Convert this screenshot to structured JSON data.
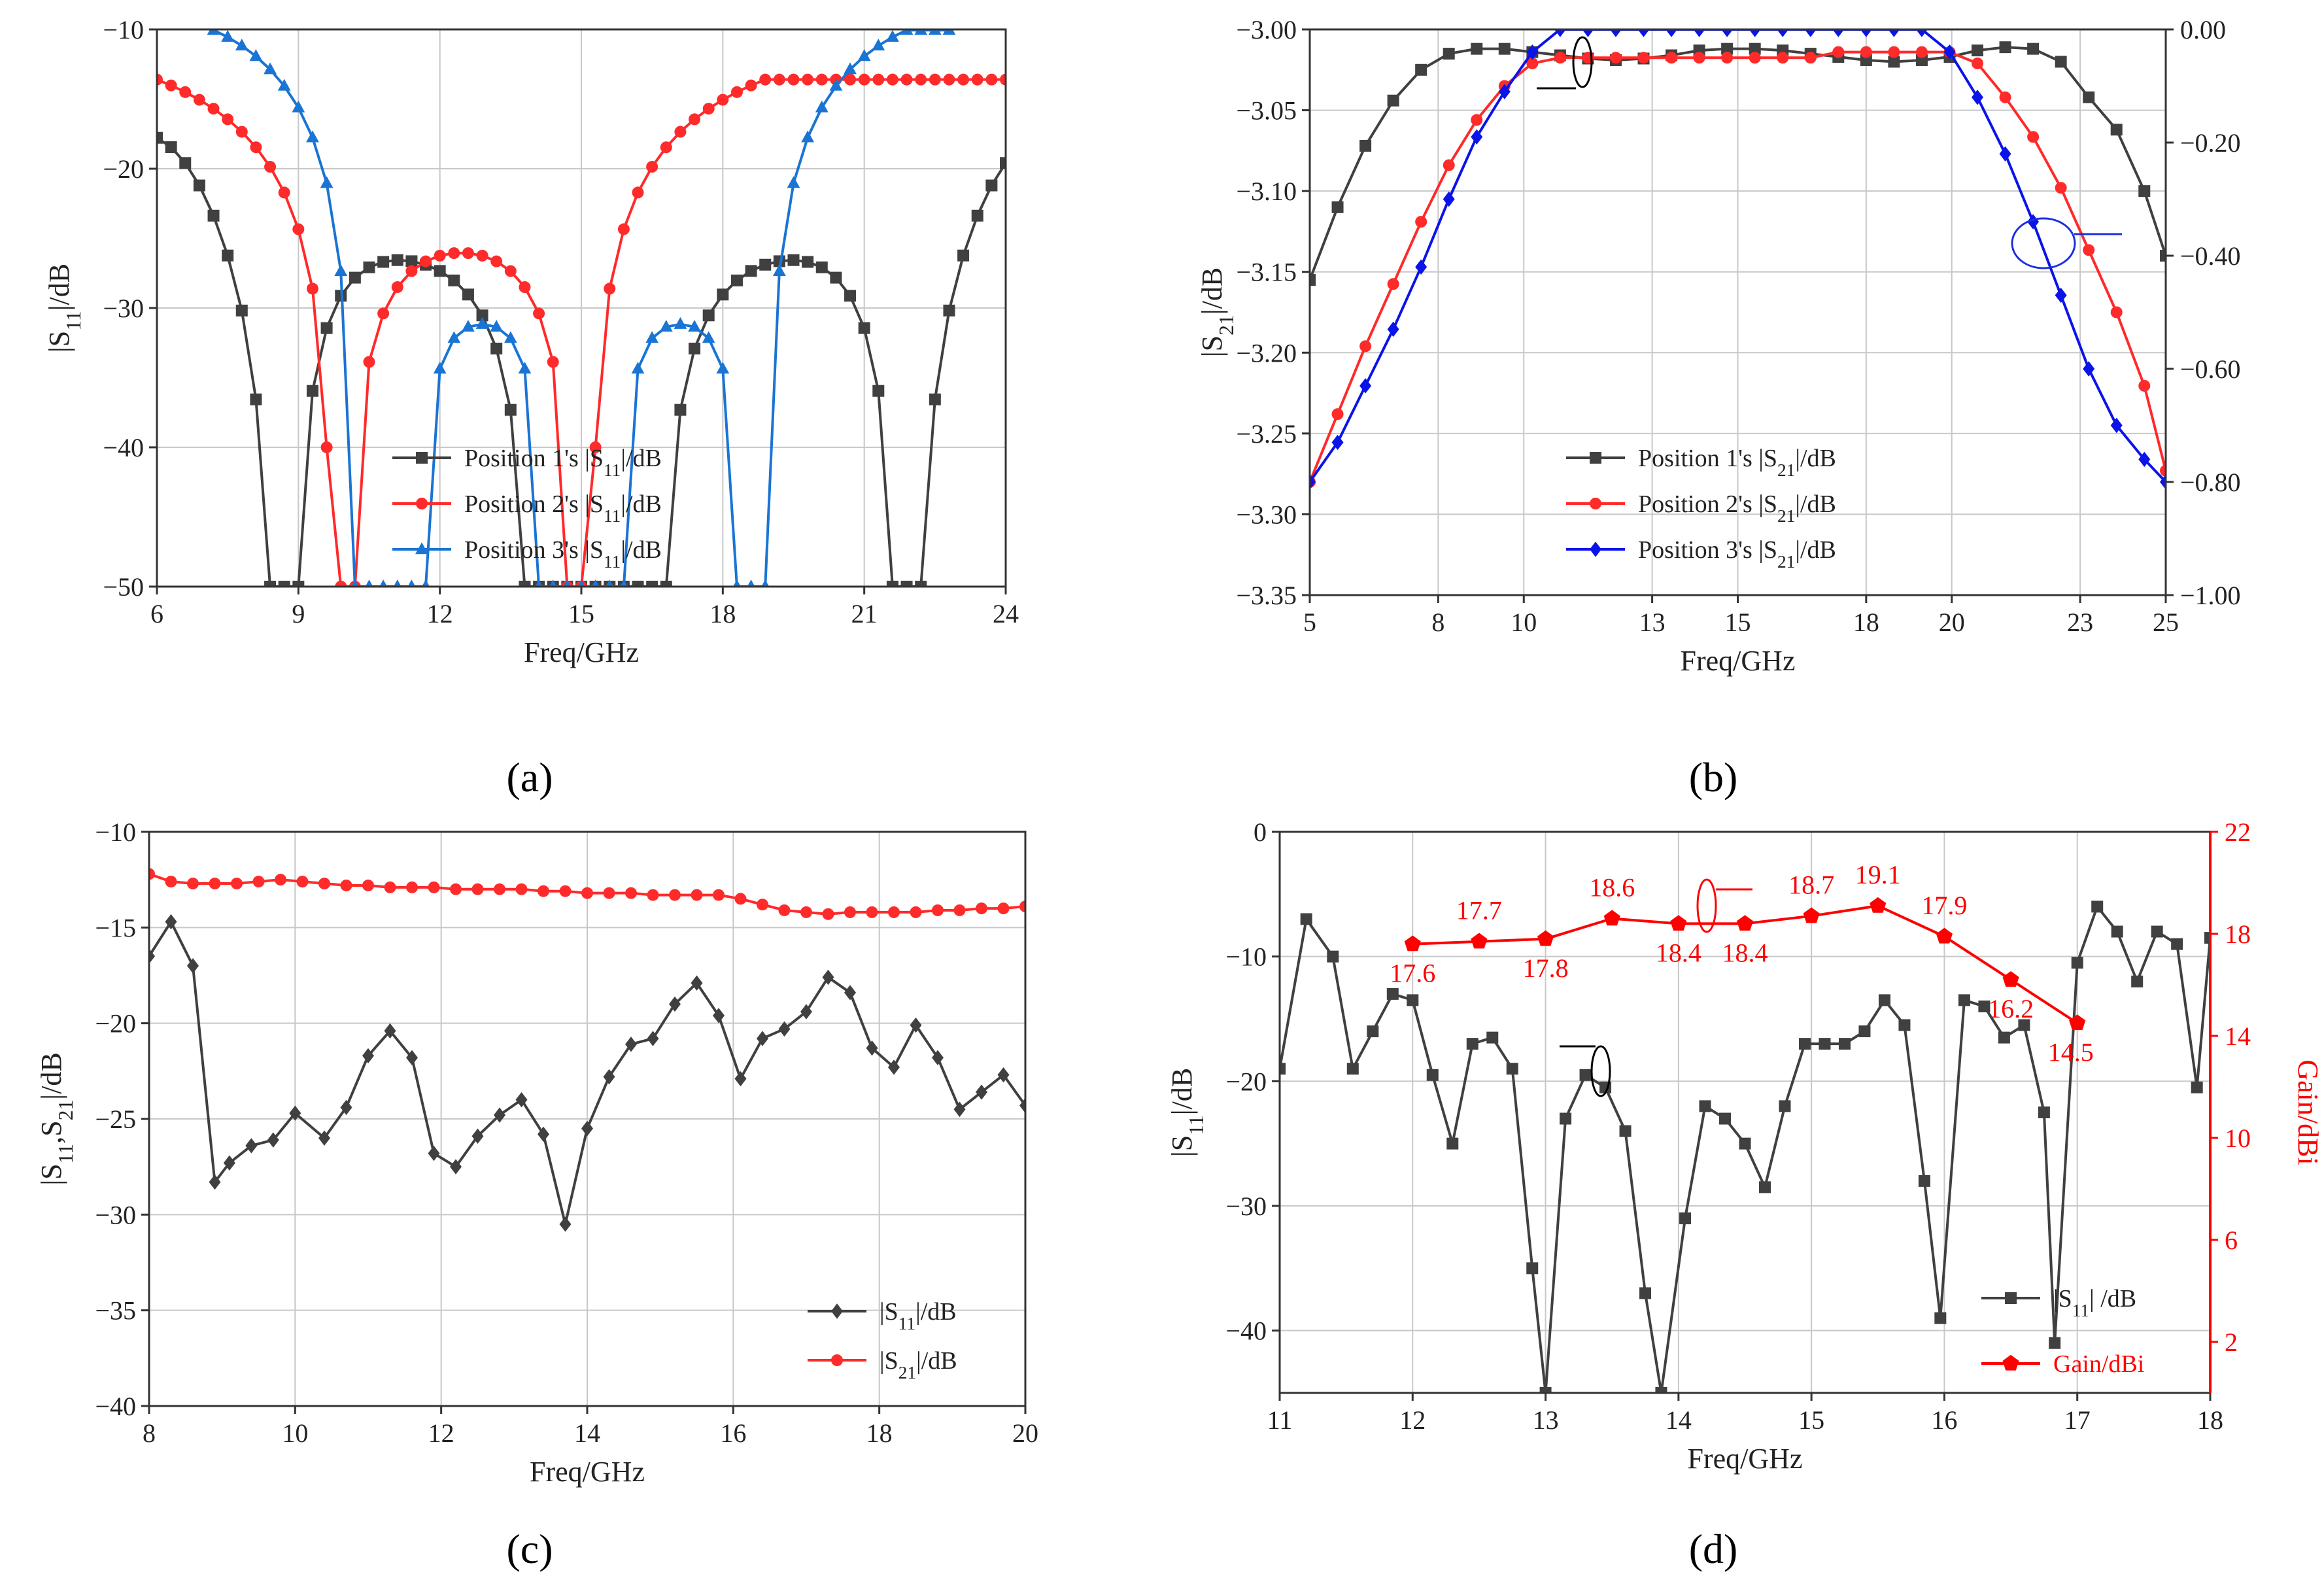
{
  "colors": {
    "black": "#404040",
    "red": "#ff2a2a",
    "blue": "#1a74d4",
    "diamond_blue": "#0a14e8",
    "gain_red": "#ff0000"
  },
  "chart_data": [
    {
      "id": "a",
      "caption": "(a)",
      "type": "line",
      "xlabel": "Freq/GHz",
      "ylabel": "|S11|/dB",
      "xlim": [
        6,
        24
      ],
      "ylim": [
        -50,
        -10
      ],
      "xticks": [
        "6",
        "9",
        "12",
        "15",
        "18",
        "21",
        "24"
      ],
      "yticks": [
        "−50",
        "−40",
        "−30",
        "−20",
        "−10"
      ],
      "grid": true,
      "series": [
        {
          "name": "Position 1's  |S11|/dB",
          "marker": "square",
          "x": [
            6.0,
            6.3,
            6.6,
            6.9,
            7.2,
            7.5,
            7.8,
            8.1,
            8.4,
            8.7,
            9.0,
            9.3,
            9.6,
            9.9,
            10.2,
            10.5,
            10.8,
            11.1,
            11.4,
            11.7,
            12.0,
            12.3,
            12.6,
            12.9,
            13.2,
            13.5,
            13.8,
            14.1,
            14.4,
            14.7,
            15.0,
            15.3,
            15.6,
            15.9,
            16.2,
            16.5,
            16.8,
            17.1,
            17.4,
            17.7,
            18.0,
            18.3,
            18.6,
            18.9,
            19.2,
            19.5,
            19.8,
            20.1,
            20.4,
            20.7,
            21.0,
            21.3,
            21.6,
            21.9,
            22.2,
            22.5,
            22.8,
            23.1,
            23.4,
            23.7,
            24.0
          ],
          "y": [
            -17.78,
            -18.45,
            -19.59,
            -21.2,
            -23.37,
            -26.23,
            -30.18,
            -36.56,
            -50,
            -50,
            -50,
            -35.95,
            -31.44,
            -29.12,
            -27.82,
            -27.08,
            -26.69,
            -26.56,
            -26.64,
            -26.89,
            -27.34,
            -28.02,
            -29.03,
            -30.53,
            -32.91,
            -37.31,
            -50,
            -50,
            -50,
            -50,
            -50,
            -50,
            -50,
            -50,
            -50,
            -50,
            -50,
            -37.31,
            -32.91,
            -30.53,
            -29.03,
            -28.02,
            -27.34,
            -26.89,
            -26.64,
            -26.56,
            -26.69,
            -27.08,
            -27.82,
            -29.12,
            -31.44,
            -35.95,
            -50,
            -50,
            -50,
            -36.56,
            -30.18,
            -26.23,
            -23.37,
            -21.2,
            -19.59
          ]
        },
        {
          "name": "Position 2's  |S11|/dB",
          "marker": "circle",
          "x": [
            6.0,
            6.3,
            6.6,
            6.9,
            7.2,
            7.5,
            7.8,
            8.1,
            8.4,
            8.7,
            9.0,
            9.3,
            9.6,
            9.9,
            10.2,
            10.5,
            10.8,
            11.1,
            11.4,
            11.7,
            12.0,
            12.3,
            12.6,
            12.9,
            13.2,
            13.5,
            13.8,
            14.1,
            14.4,
            14.7,
            15.0,
            15.3,
            15.6,
            15.9,
            16.2,
            16.5,
            16.8,
            17.1,
            17.4,
            17.7,
            18.0,
            18.3,
            18.6,
            18.9,
            19.2,
            19.5,
            19.8,
            20.1,
            20.4,
            20.7,
            21.0,
            21.3,
            21.6,
            21.9,
            22.2,
            22.5,
            22.8,
            23.1,
            23.4,
            23.7,
            24.0
          ],
          "y": [
            -13.6,
            -14.02,
            -14.5,
            -15.05,
            -15.69,
            -16.45,
            -17.35,
            -18.46,
            -19.86,
            -21.71,
            -24.34,
            -28.61,
            -40,
            -50,
            -50,
            -33.87,
            -30.39,
            -28.5,
            -27.35,
            -26.65,
            -26.24,
            -26.06,
            -26.06,
            -26.24,
            -26.65,
            -27.35,
            -28.5,
            -30.39,
            -33.87,
            -50,
            -50,
            -40,
            -28.61,
            -24.34,
            -21.71,
            -19.86,
            -18.46,
            -17.35,
            -16.45,
            -15.69,
            -15.05,
            -14.5,
            -14.02,
            -13.6,
            -13.6,
            -13.6,
            -13.6,
            -13.6,
            -13.6,
            -13.6,
            -13.6,
            -13.6,
            -13.6,
            -13.6,
            -13.6,
            -13.6,
            -13.6,
            -13.6,
            -13.6,
            -13.6,
            -13.6
          ]
        },
        {
          "name": "Position 3's  |S11|/dB",
          "marker": "triangle",
          "x": [
            7.2,
            7.5,
            7.8,
            8.1,
            8.4,
            8.7,
            9.0,
            9.3,
            9.6,
            9.9,
            10.2,
            10.5,
            10.8,
            11.1,
            11.4,
            11.7,
            12.0,
            12.3,
            12.6,
            12.9,
            13.2,
            13.5,
            13.8,
            14.1,
            14.4,
            14.7,
            15.0,
            15.3,
            15.6,
            15.9,
            16.2,
            16.5,
            16.8,
            17.1,
            17.4,
            17.7,
            18.0,
            18.3,
            18.6,
            18.9,
            19.2,
            19.5,
            19.8,
            20.1,
            20.4,
            20.7,
            21.0,
            21.3,
            21.6,
            21.9,
            22.2,
            22.5,
            22.8
          ],
          "y": [
            -10.05,
            -10.55,
            -11.17,
            -11.93,
            -12.87,
            -14.06,
            -15.61,
            -17.76,
            -21.04,
            -27.36,
            -50,
            -50,
            -50,
            -50,
            -50,
            -50,
            -34.37,
            -32.17,
            -31.36,
            -31.16,
            -31.36,
            -32.17,
            -34.37,
            -50,
            -50,
            -50,
            -50,
            -50,
            -50,
            -50,
            -34.37,
            -32.17,
            -31.36,
            -31.16,
            -31.36,
            -32.17,
            -34.37,
            -50,
            -50,
            -50,
            -27.36,
            -21.04,
            -17.76,
            -15.61,
            -14.06,
            -12.87,
            -11.93,
            -11.17,
            -10.55,
            -10.05,
            -10.05,
            -10.05,
            -10.05
          ]
        }
      ]
    },
    {
      "id": "b",
      "caption": "(b)",
      "type": "line",
      "xlabel": "Freq/GHz",
      "ylabel": "|S21|/dB",
      "xlim": [
        5,
        25
      ],
      "ylim": [
        -3.35,
        -3.0
      ],
      "y2lim": [
        -1.0,
        0.0
      ],
      "xticks": [
        "5",
        "8",
        "10",
        "13",
        "15",
        "18",
        "20",
        "23",
        "25"
      ],
      "yticks": [
        "−3.35",
        "−3.30",
        "−3.25",
        "−3.20",
        "−3.15",
        "−3.10",
        "−3.05",
        "−3.00"
      ],
      "y2ticks": [
        "−1.00",
        "−0.80",
        "−0.60",
        "−0.40",
        "−0.20",
        "0.00"
      ],
      "grid": true,
      "series": [
        {
          "name": "Position 1's  |S21|/dB",
          "marker": "square",
          "axis": "left",
          "x": [
            5.0,
            5.65,
            6.3,
            6.95,
            7.6,
            8.25,
            8.9,
            9.55,
            10.2,
            10.85,
            11.5,
            12.15,
            12.8,
            13.45,
            14.1,
            14.75,
            15.4,
            16.05,
            16.7,
            17.35,
            18.0,
            18.65,
            19.3,
            19.95,
            20.6,
            21.25,
            21.9,
            22.55,
            23.2,
            23.85,
            24.5,
            25.0
          ],
          "y": [
            -3.155,
            -3.11,
            -3.072,
            -3.044,
            -3.025,
            -3.015,
            -3.012,
            -3.012,
            -3.014,
            -3.016,
            -3.018,
            -3.019,
            -3.018,
            -3.016,
            -3.013,
            -3.012,
            -3.012,
            -3.013,
            -3.015,
            -3.017,
            -3.019,
            -3.02,
            -3.019,
            -3.017,
            -3.013,
            -3.011,
            -3.012,
            -3.02,
            -3.042,
            -3.062,
            -3.1,
            -3.14
          ]
        },
        {
          "name": "Position 2's  |S21|/dB",
          "marker": "circle",
          "axis": "right",
          "x": [
            5.0,
            5.65,
            6.3,
            6.95,
            7.6,
            8.25,
            8.9,
            9.55,
            10.2,
            10.85,
            11.5,
            12.15,
            12.8,
            13.45,
            14.1,
            14.75,
            15.4,
            16.05,
            16.7,
            17.35,
            18.0,
            18.65,
            19.3,
            19.95,
            20.6,
            21.25,
            21.9,
            22.55,
            23.2,
            23.85,
            24.5,
            25.0
          ],
          "y": [
            -0.8,
            -0.68,
            -0.56,
            -0.45,
            -0.34,
            -0.24,
            -0.16,
            -0.1,
            -0.06,
            -0.05,
            -0.05,
            -0.05,
            -0.05,
            -0.05,
            -0.05,
            -0.05,
            -0.05,
            -0.05,
            -0.05,
            -0.04,
            -0.04,
            -0.04,
            -0.04,
            -0.04,
            -0.06,
            -0.12,
            -0.19,
            -0.28,
            -0.39,
            -0.5,
            -0.63,
            -0.78
          ]
        },
        {
          "name": "Position 3's  |S21|/dB",
          "marker": "diamond",
          "axis": "right",
          "x": [
            5.0,
            5.65,
            6.3,
            6.95,
            7.6,
            8.25,
            8.9,
            9.55,
            10.2,
            10.85,
            11.5,
            12.15,
            12.8,
            13.45,
            14.1,
            14.75,
            15.4,
            16.05,
            16.7,
            17.35,
            18.0,
            18.65,
            19.3,
            19.95,
            20.6,
            21.25,
            21.9,
            22.55,
            23.2,
            23.85,
            24.5,
            25.0
          ],
          "y": [
            -0.8,
            -0.73,
            -0.63,
            -0.53,
            -0.42,
            -0.3,
            -0.19,
            -0.11,
            -0.04,
            0.0,
            0.0,
            0.0,
            0.0,
            0.0,
            0.0,
            0.0,
            0.0,
            0.0,
            0.0,
            0.0,
            0.0,
            0.0,
            0.0,
            -0.04,
            -0.12,
            -0.22,
            -0.34,
            -0.47,
            -0.6,
            -0.7,
            -0.76,
            -0.8
          ]
        }
      ]
    },
    {
      "id": "c",
      "caption": "(c)",
      "type": "line",
      "xlabel": "Freq/GHz",
      "ylabel": "|S11,S21|/dB",
      "xlim": [
        8,
        20
      ],
      "ylim": [
        -40,
        -10
      ],
      "xticks": [
        "8",
        "10",
        "12",
        "14",
        "16",
        "18",
        "20"
      ],
      "yticks": [
        "−40",
        "−35",
        "−30",
        "−25",
        "−20",
        "−15",
        "−10"
      ],
      "grid": true,
      "series": [
        {
          "name": "|S11|/dB",
          "marker": "diamond",
          "x": [
            8.0,
            8.3,
            8.6,
            8.9,
            9.1,
            9.4,
            9.7,
            10.0,
            10.4,
            10.7,
            11.0,
            11.3,
            11.6,
            11.9,
            12.2,
            12.5,
            12.8,
            13.1,
            13.4,
            13.7,
            14.0,
            14.3,
            14.6,
            14.9,
            15.2,
            15.5,
            15.8,
            16.1,
            16.4,
            16.7,
            17.0,
            17.3,
            17.6,
            17.9,
            18.2,
            18.5,
            18.8,
            19.1,
            19.4,
            19.7,
            20.0
          ],
          "y": [
            -16.5,
            -14.7,
            -17.0,
            -28.3,
            -27.3,
            -26.4,
            -26.1,
            -24.7,
            -26.0,
            -24.4,
            -21.7,
            -20.4,
            -21.8,
            -26.8,
            -27.5,
            -25.9,
            -24.8,
            -24.0,
            -25.8,
            -30.5,
            -25.5,
            -22.8,
            -21.1,
            -20.8,
            -19.0,
            -17.9,
            -19.6,
            -22.9,
            -20.8,
            -20.3,
            -19.4,
            -17.6,
            -18.4,
            -21.3,
            -22.3,
            -20.1,
            -21.8,
            -24.5,
            -23.6,
            -22.7,
            -24.3
          ]
        },
        {
          "name": "|S21|/dB",
          "marker": "circle",
          "x": [
            8.0,
            8.3,
            8.6,
            8.9,
            9.2,
            9.5,
            9.8,
            10.1,
            10.4,
            10.7,
            11.0,
            11.3,
            11.6,
            11.9,
            12.2,
            12.5,
            12.8,
            13.1,
            13.4,
            13.7,
            14.0,
            14.3,
            14.6,
            14.9,
            15.2,
            15.5,
            15.8,
            16.1,
            16.4,
            16.7,
            17.0,
            17.3,
            17.6,
            17.9,
            18.2,
            18.5,
            18.8,
            19.1,
            19.4,
            19.7,
            20.0
          ],
          "y": [
            -12.2,
            -12.6,
            -12.7,
            -12.7,
            -12.7,
            -12.6,
            -12.5,
            -12.6,
            -12.7,
            -12.8,
            -12.8,
            -12.9,
            -12.9,
            -12.9,
            -13.0,
            -13.0,
            -13.0,
            -13.0,
            -13.1,
            -13.1,
            -13.2,
            -13.2,
            -13.2,
            -13.3,
            -13.3,
            -13.3,
            -13.3,
            -13.5,
            -13.8,
            -14.1,
            -14.2,
            -14.3,
            -14.2,
            -14.2,
            -14.2,
            -14.2,
            -14.1,
            -14.1,
            -14.0,
            -14.0,
            -13.9
          ]
        }
      ]
    },
    {
      "id": "d",
      "caption": "(d)",
      "type": "line",
      "xlabel": "Freq/GHz",
      "ylabel": "|S11|/dB",
      "y2label": "Gain/dBi",
      "xlim": [
        11,
        18
      ],
      "ylim": [
        -45,
        0
      ],
      "y2lim": [
        0,
        22
      ],
      "xticks": [
        "11",
        "12",
        "13",
        "14",
        "15",
        "16",
        "17",
        "18"
      ],
      "yticks": [
        "−40",
        "−30",
        "−20",
        "−10",
        "0"
      ],
      "y2ticks": [
        "2",
        "6",
        "10",
        "14",
        "18",
        "22"
      ],
      "grid": true,
      "series": [
        {
          "name": "|S11| /dB",
          "marker": "square",
          "axis": "left",
          "x": [
            11.0,
            11.2,
            11.4,
            11.55,
            11.7,
            11.85,
            12.0,
            12.15,
            12.3,
            12.45,
            12.6,
            12.75,
            12.9,
            13.0,
            13.15,
            13.3,
            13.45,
            13.6,
            13.75,
            13.87,
            14.05,
            14.2,
            14.35,
            14.5,
            14.65,
            14.8,
            14.95,
            15.1,
            15.25,
            15.4,
            15.55,
            15.7,
            15.85,
            15.97,
            16.15,
            16.3,
            16.45,
            16.6,
            16.75,
            16.83,
            17.0,
            17.15,
            17.3,
            17.45,
            17.6,
            17.75,
            17.9,
            18.0
          ],
          "y": [
            -19.0,
            -7.0,
            -10.0,
            -19.0,
            -16.0,
            -13.0,
            -13.5,
            -19.5,
            -25.0,
            -17.0,
            -16.5,
            -19.0,
            -35.0,
            -45.0,
            -23.0,
            -19.5,
            -20.5,
            -24.0,
            -37.0,
            -45.0,
            -31.0,
            -22.0,
            -23.0,
            -25.0,
            -28.5,
            -22.0,
            -17.0,
            -17.0,
            -17.0,
            -16.0,
            -13.5,
            -15.5,
            -28.0,
            -39.0,
            -13.5,
            -14.0,
            -16.5,
            -15.5,
            -22.5,
            -41.0,
            -10.5,
            -6.0,
            -8.0,
            -12.0,
            -8.0,
            -9.0,
            -20.5,
            -8.5
          ]
        },
        {
          "name": "Gain/dBi",
          "marker": "pentagon",
          "axis": "right",
          "x": [
            12.0,
            12.5,
            13.0,
            13.5,
            14.0,
            14.5,
            15.0,
            15.5,
            16.0,
            16.5,
            17.0
          ],
          "y": [
            17.6,
            17.7,
            17.8,
            18.6,
            18.4,
            18.4,
            18.7,
            19.1,
            17.9,
            16.2,
            14.5
          ],
          "labels": [
            "17.6",
            "17.7",
            "17.8",
            "18.6",
            "18.4",
            "18.4",
            "18.7",
            "19.1",
            "17.9",
            "16.2",
            "14.5"
          ]
        }
      ]
    }
  ]
}
